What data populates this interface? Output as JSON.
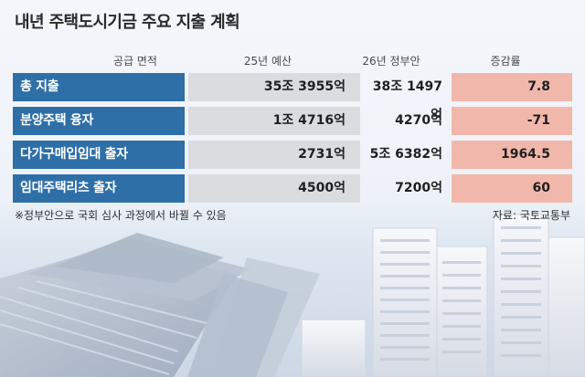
{
  "title": "내년 주택도시기금 주요 지출 계획",
  "columns": [
    "공급 면적",
    "25년 예산",
    "26년 정부안",
    "증감률"
  ],
  "rows": [
    {
      "label": "총 지출",
      "budget_25": "35조 3955억",
      "proposal_26": "38조 1497억",
      "change": "7.8"
    },
    {
      "label": "분양주택 융자",
      "budget_25": "1조 4716억",
      "proposal_26": "4270억",
      "change": "-71"
    },
    {
      "label": "다가구매입임대 출자",
      "budget_25": "2731억",
      "proposal_26": "5조 6382억",
      "change": "1964.5"
    },
    {
      "label": "임대주택리츠 출자",
      "budget_25": "4500억",
      "proposal_26": "7200억",
      "change": "60"
    }
  ],
  "footer": {
    "note": "※정부안으로 국회 심사 과정에서 바뀔 수 있음",
    "source": "자료: 국토교통부"
  },
  "colors": {
    "label_bg": "#2e6fa8",
    "budget_bg": "#dbdcdf",
    "change_bg": "#f2b7ab"
  }
}
